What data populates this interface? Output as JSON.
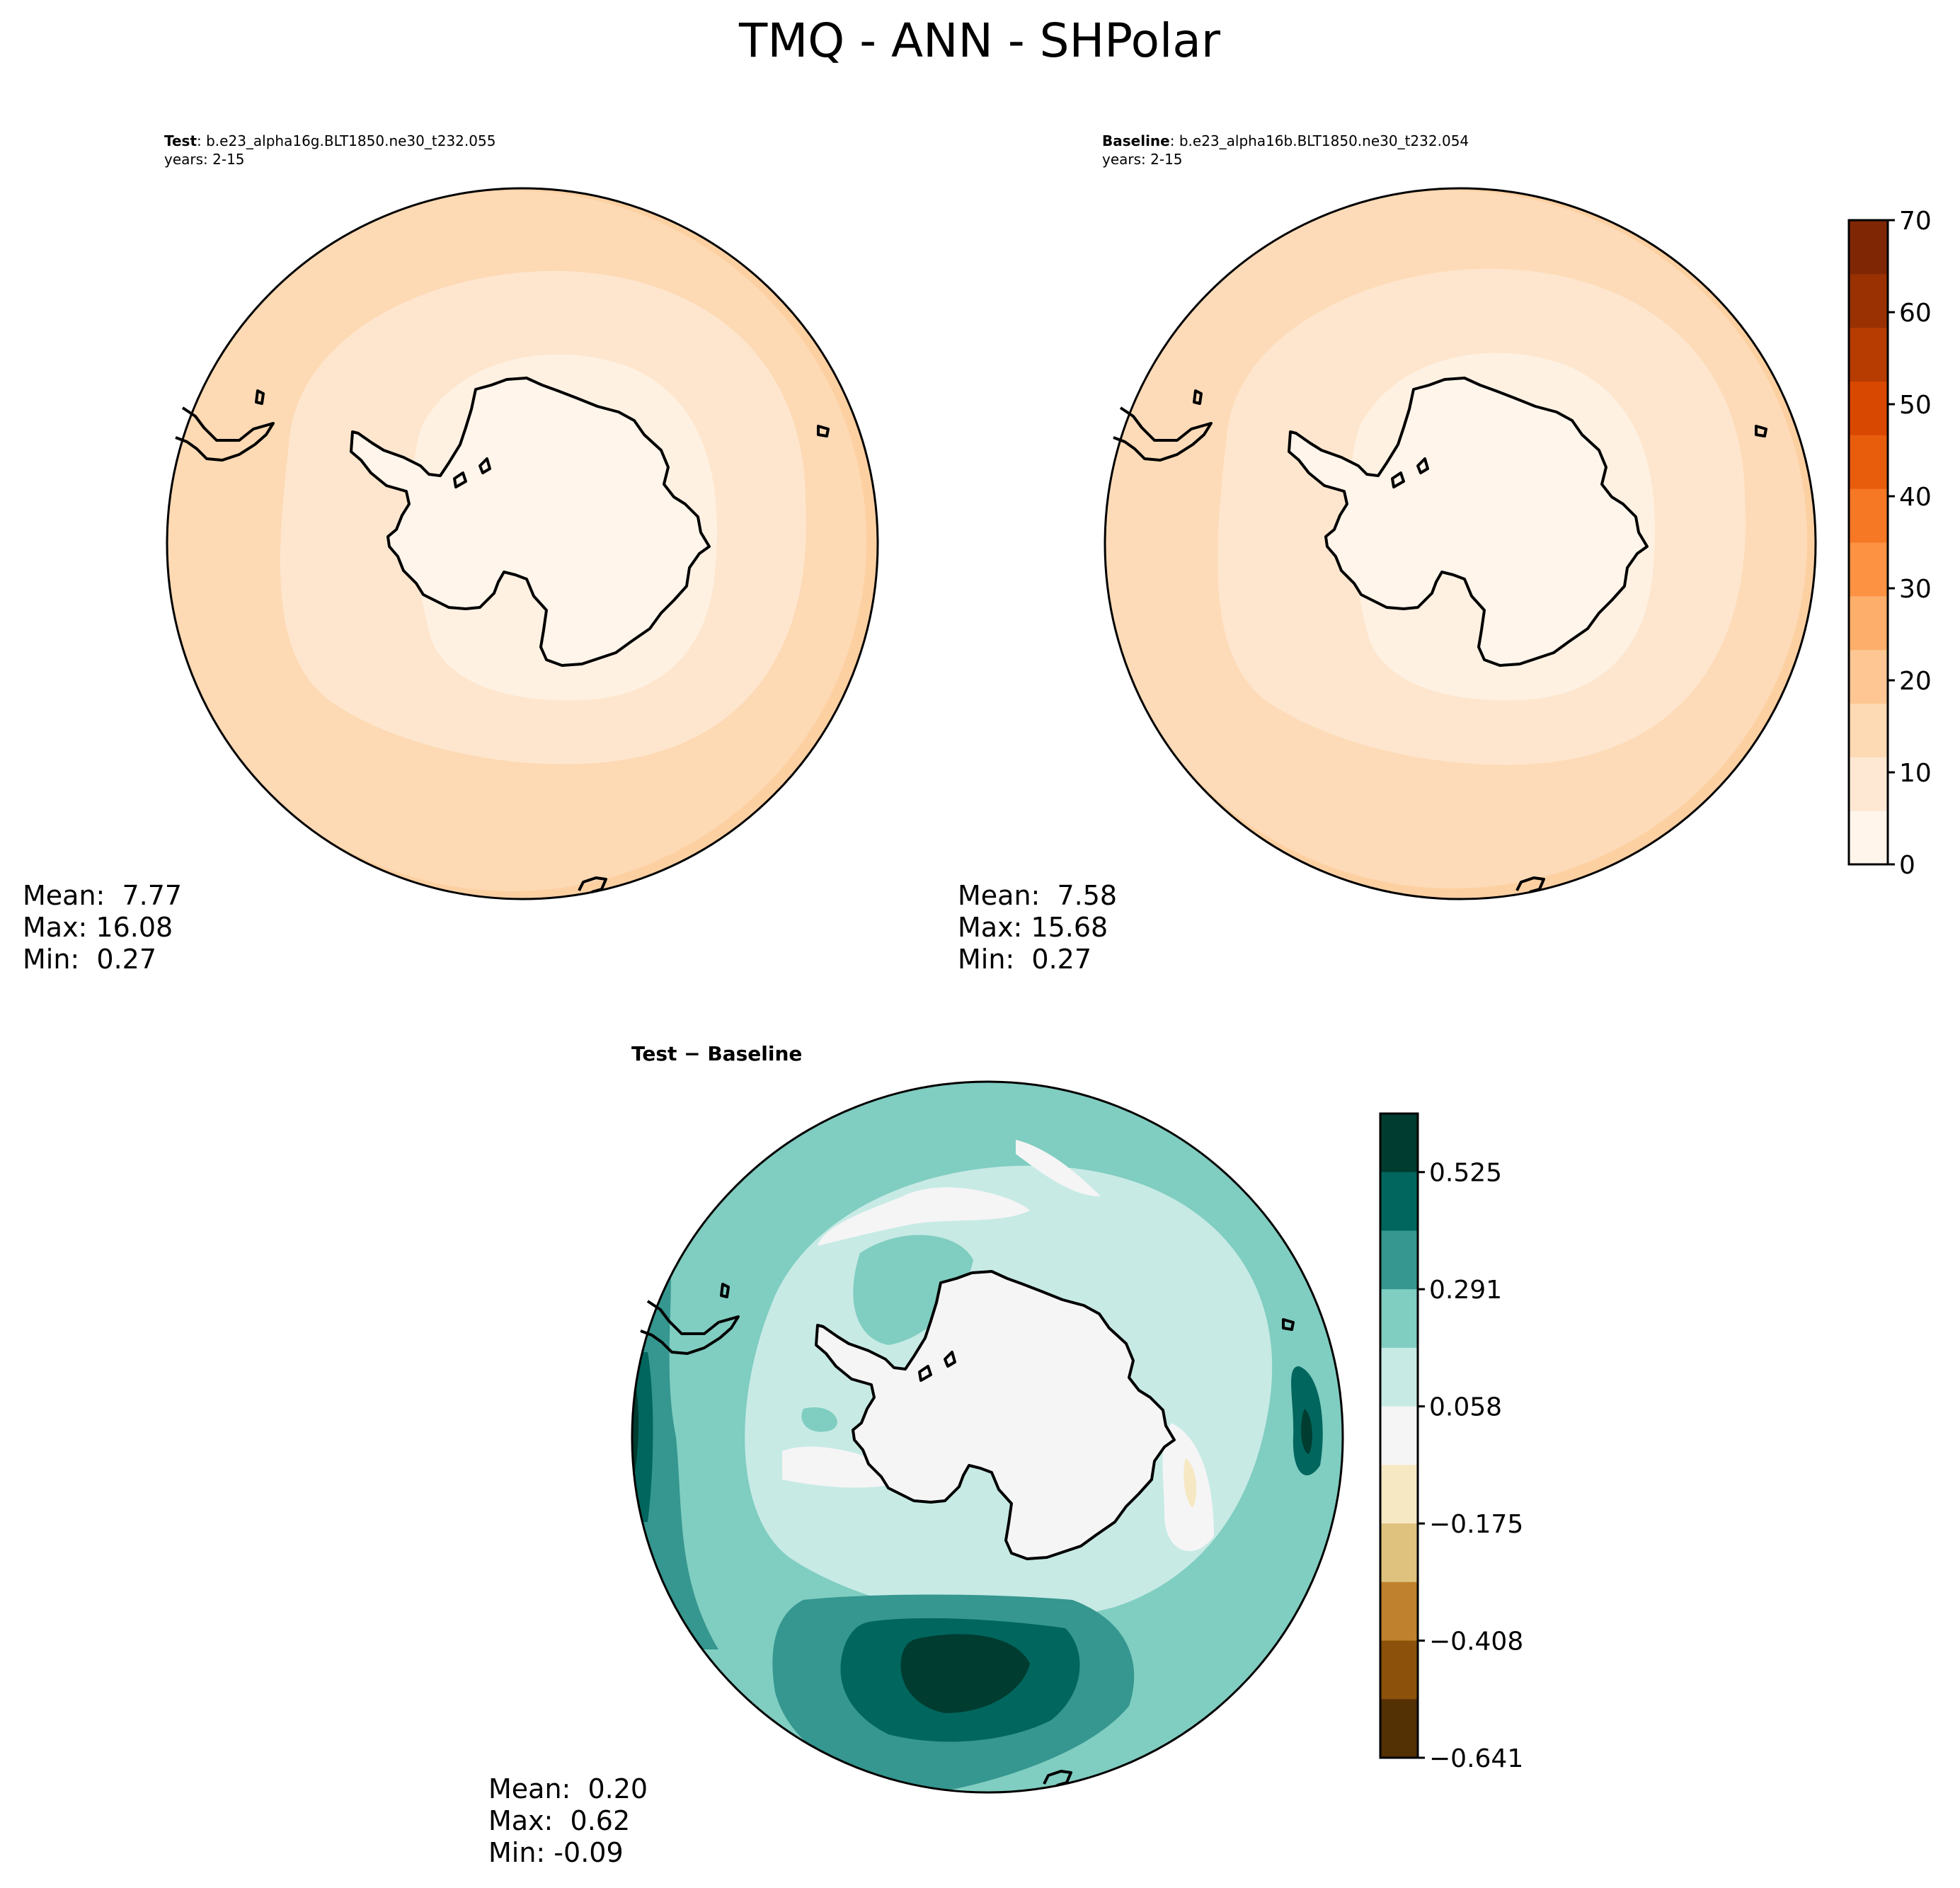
{
  "figure": {
    "title": "TMQ - ANN - SHPolar"
  },
  "panels": {
    "test": {
      "label_bold": "Test",
      "label_rest": ": b.e23_alpha16g.BLT1850.ne30_t232.055",
      "years": "years: 2-15",
      "stats": [
        "Mean:  7.77",
        "Max: 16.08",
        "Min:  0.27"
      ]
    },
    "baseline": {
      "label_bold": "Baseline",
      "label_rest": ": b.e23_alpha16b.BLT1850.ne30_t232.054",
      "years": "years: 2-15",
      "stats": [
        "Mean:  7.58",
        "Max: 15.68",
        "Min:  0.27"
      ]
    },
    "diff": {
      "label": "Test − Baseline",
      "stats": [
        "Mean:  0.20",
        "Max:  0.62",
        "Min: -0.09"
      ]
    }
  },
  "colorbars": {
    "main": {
      "ticks": [
        "0",
        "10",
        "20",
        "30",
        "40",
        "50",
        "60",
        "70"
      ],
      "colors": [
        "#fff5eb",
        "#fee8d3",
        "#fdd9b4",
        "#fdc692",
        "#fdae6b",
        "#fd9243",
        "#f67824",
        "#e85d0c",
        "#d94801",
        "#b63c02",
        "#993103",
        "#7f2704"
      ]
    },
    "diff": {
      "ticks": [
        "0.525",
        "0.291",
        "0.058",
        "−0.175",
        "−0.408",
        "−0.641"
      ],
      "colors": [
        "#003c30",
        "#01665e",
        "#35978f",
        "#80cdc1",
        "#c7eae5",
        "#f5f5f5",
        "#f6e8c3",
        "#dfc27d",
        "#bf812d",
        "#8c510a",
        "#543005"
      ]
    }
  },
  "chart_data": [
    {
      "type": "heatmap",
      "name": "Test",
      "projection": "south polar stereographic",
      "mean": 7.77,
      "max": 16.08,
      "min": 0.27,
      "colorbar_range": [
        0,
        70
      ]
    },
    {
      "type": "heatmap",
      "name": "Baseline",
      "projection": "south polar stereographic",
      "mean": 7.58,
      "max": 15.68,
      "min": 0.27,
      "colorbar_range": [
        0,
        70
      ]
    },
    {
      "type": "heatmap",
      "name": "Test − Baseline",
      "projection": "south polar stereographic",
      "mean": 0.2,
      "max": 0.62,
      "min": -0.09,
      "colorbar_range": [
        -0.641,
        0.642
      ]
    }
  ]
}
